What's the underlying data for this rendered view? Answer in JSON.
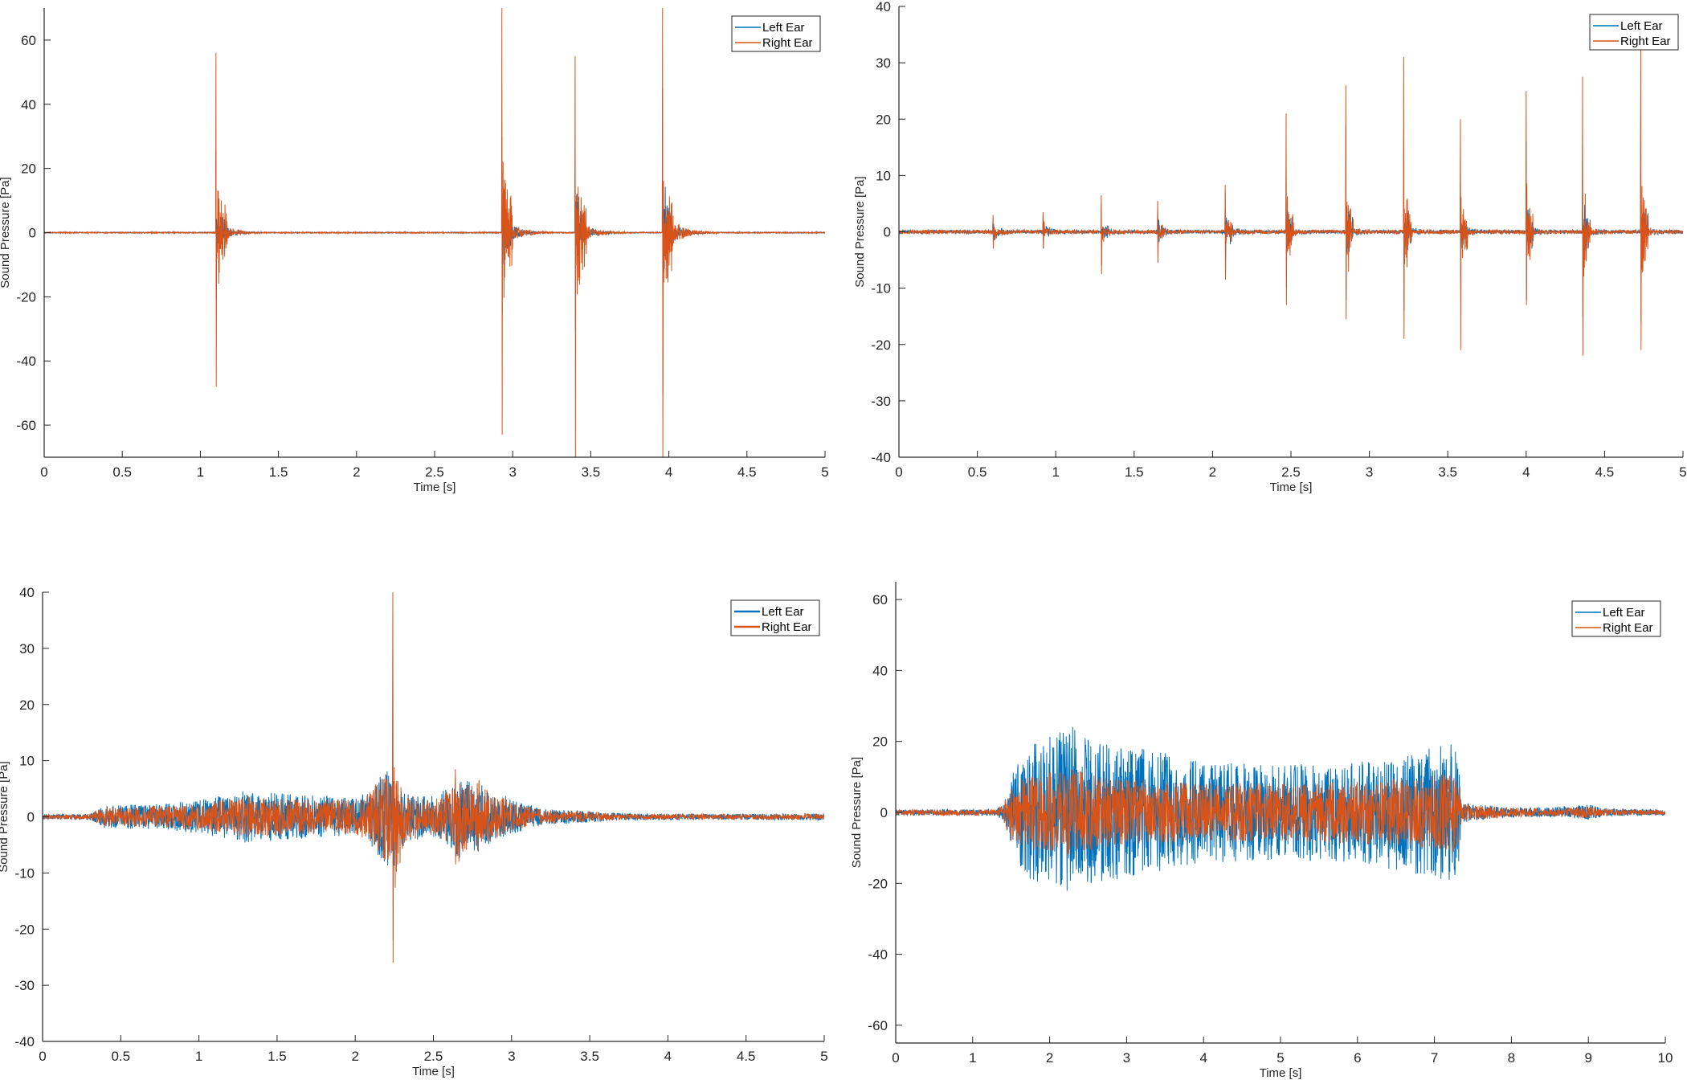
{
  "colors": {
    "left": "#0072BD",
    "right": "#D95319",
    "axis": "#262626"
  },
  "chart_data": [
    {
      "type": "line",
      "xlabel": "Time [s]",
      "ylabel": "Sound Pressure [Pa]",
      "xlim": [
        0,
        5
      ],
      "ylim": [
        -70,
        70
      ],
      "xticks": [
        0,
        0.5,
        1,
        1.5,
        2,
        2.5,
        3,
        3.5,
        4,
        4.5,
        5
      ],
      "yticks": [
        -60,
        -40,
        -20,
        0,
        20,
        40,
        60
      ],
      "legend": {
        "position": "top-right",
        "entries": [
          "Left Ear",
          "Right Ear"
        ]
      },
      "series": [
        {
          "name": "Left Ear",
          "noise": 0.15,
          "events": [
            {
              "t": 1.1,
              "pos": 26,
              "neg": -20,
              "decay": 0.05,
              "ring": 4
            },
            {
              "t": 2.93,
              "pos": 30,
              "neg": -25,
              "decay": 0.05,
              "ring": 6
            },
            {
              "t": 3.4,
              "pos": 28,
              "neg": -30,
              "decay": 0.05,
              "ring": 6
            },
            {
              "t": 3.96,
              "pos": 45,
              "neg": -50,
              "decay": 0.05,
              "ring": 8
            }
          ]
        },
        {
          "name": "Right Ear",
          "noise": 0.2,
          "events": [
            {
              "t": 1.1,
              "pos": 56,
              "neg": -48,
              "decay": 0.06,
              "ring": 4
            },
            {
              "t": 2.93,
              "pos": 70,
              "neg": -63,
              "decay": 0.06,
              "ring": 6
            },
            {
              "t": 3.4,
              "pos": 55,
              "neg": -70,
              "decay": 0.06,
              "ring": 6
            },
            {
              "t": 3.96,
              "pos": 70,
              "neg": -70,
              "decay": 0.06,
              "ring": 8
            }
          ]
        }
      ]
    },
    {
      "type": "line",
      "xlabel": "Time [s]",
      "ylabel": "Sound Pressure [Pa]",
      "xlim": [
        0,
        5
      ],
      "ylim": [
        -40,
        40
      ],
      "xticks": [
        0,
        0.5,
        1,
        1.5,
        2,
        2.5,
        3,
        3.5,
        4,
        4.5,
        5
      ],
      "yticks": [
        -40,
        -30,
        -20,
        -10,
        0,
        10,
        20,
        30,
        40
      ],
      "legend": {
        "position": "top-right",
        "entries": [
          "Left Ear",
          "Right Ear"
        ]
      },
      "series": [
        {
          "name": "Left Ear",
          "noise": 0.3,
          "events": [
            {
              "t": 0.6,
              "pos": 2.5,
              "neg": -2.5,
              "decay": 0.04,
              "ring": 1
            },
            {
              "t": 0.92,
              "pos": 3,
              "neg": -3,
              "decay": 0.04,
              "ring": 1
            },
            {
              "t": 1.29,
              "pos": 5,
              "neg": -6,
              "decay": 0.04,
              "ring": 1
            },
            {
              "t": 1.65,
              "pos": 4.5,
              "neg": -4.5,
              "decay": 0.04,
              "ring": 1
            },
            {
              "t": 2.08,
              "pos": 7,
              "neg": -8,
              "decay": 0.04,
              "ring": 1.5
            },
            {
              "t": 2.47,
              "pos": 12,
              "neg": -10,
              "decay": 0.04,
              "ring": 1.5
            },
            {
              "t": 2.85,
              "pos": 19,
              "neg": -12,
              "decay": 0.04,
              "ring": 1.5
            },
            {
              "t": 3.22,
              "pos": 17,
              "neg": -14,
              "decay": 0.04,
              "ring": 1.5
            },
            {
              "t": 3.58,
              "pos": 13,
              "neg": -9,
              "decay": 0.04,
              "ring": 1.5
            },
            {
              "t": 4.0,
              "pos": 16,
              "neg": -12,
              "decay": 0.04,
              "ring": 1.5
            },
            {
              "t": 4.36,
              "pos": 18,
              "neg": -15,
              "decay": 0.04,
              "ring": 1.5
            },
            {
              "t": 4.73,
              "pos": 23,
              "neg": -16,
              "decay": 0.04,
              "ring": 1.5
            }
          ]
        },
        {
          "name": "Right Ear",
          "noise": 0.35,
          "events": [
            {
              "t": 0.6,
              "pos": 3,
              "neg": -3,
              "decay": 0.04,
              "ring": 1
            },
            {
              "t": 0.92,
              "pos": 3.5,
              "neg": -3,
              "decay": 0.04,
              "ring": 1
            },
            {
              "t": 1.29,
              "pos": 6.5,
              "neg": -7.5,
              "decay": 0.04,
              "ring": 1
            },
            {
              "t": 1.65,
              "pos": 5.5,
              "neg": -5.5,
              "decay": 0.04,
              "ring": 1
            },
            {
              "t": 2.08,
              "pos": 8.3,
              "neg": -8.5,
              "decay": 0.04,
              "ring": 1.5
            },
            {
              "t": 2.47,
              "pos": 21,
              "neg": -13,
              "decay": 0.04,
              "ring": 1.5
            },
            {
              "t": 2.85,
              "pos": 26,
              "neg": -15.5,
              "decay": 0.04,
              "ring": 1.5
            },
            {
              "t": 3.22,
              "pos": 31,
              "neg": -19,
              "decay": 0.04,
              "ring": 1.5
            },
            {
              "t": 3.58,
              "pos": 20,
              "neg": -21,
              "decay": 0.04,
              "ring": 1.5
            },
            {
              "t": 4.0,
              "pos": 25,
              "neg": -13,
              "decay": 0.04,
              "ring": 1.5
            },
            {
              "t": 4.36,
              "pos": 27.5,
              "neg": -22,
              "decay": 0.04,
              "ring": 1.5
            },
            {
              "t": 4.73,
              "pos": 32.5,
              "neg": -21,
              "decay": 0.04,
              "ring": 1.5
            }
          ]
        }
      ]
    },
    {
      "type": "line",
      "xlabel": "Time [s]",
      "ylabel": "Sound Pressure [Pa]",
      "xlim": [
        0,
        5
      ],
      "ylim": [
        -40,
        40
      ],
      "xticks": [
        0,
        0.5,
        1,
        1.5,
        2,
        2.5,
        3,
        3.5,
        4,
        4.5,
        5
      ],
      "yticks": [
        -40,
        -30,
        -20,
        -10,
        0,
        10,
        20,
        30,
        40
      ],
      "legend": {
        "position": "top-right",
        "entries": [
          "Left Ear",
          "Right Ear"
        ]
      },
      "series": [
        {
          "name": "Left Ear",
          "noise": 0.2,
          "envelope": [
            [
              0,
              0.2
            ],
            [
              0.3,
              0.3
            ],
            [
              0.4,
              1.8
            ],
            [
              0.8,
              2.2
            ],
            [
              1.0,
              2.8
            ],
            [
              1.3,
              4.5
            ],
            [
              1.6,
              3.8
            ],
            [
              2.0,
              3.2
            ],
            [
              2.1,
              5
            ],
            [
              2.2,
              9
            ],
            [
              2.3,
              4
            ],
            [
              2.5,
              3.5
            ],
            [
              2.6,
              5
            ],
            [
              2.7,
              7
            ],
            [
              2.9,
              4
            ],
            [
              3.0,
              3
            ],
            [
              3.2,
              1.2
            ],
            [
              3.5,
              0.8
            ],
            [
              3.7,
              0.4
            ],
            [
              4.2,
              0.3
            ],
            [
              5.0,
              0.4
            ]
          ],
          "events": [
            {
              "t": 2.24,
              "pos": 36,
              "neg": -22,
              "decay": 0.04,
              "ring": 6
            },
            {
              "t": 2.64,
              "pos": 7,
              "neg": -7,
              "decay": 0.05,
              "ring": 3
            },
            {
              "t": 2.78,
              "pos": 5,
              "neg": -5,
              "decay": 0.05,
              "ring": 2
            }
          ]
        },
        {
          "name": "Right Ear",
          "noise": 0.2,
          "envelope": [
            [
              0,
              0.2
            ],
            [
              0.3,
              0.3
            ],
            [
              0.4,
              1.5
            ],
            [
              0.8,
              1.8
            ],
            [
              1.0,
              2.3
            ],
            [
              1.3,
              3.5
            ],
            [
              1.6,
              3.0
            ],
            [
              2.0,
              2.8
            ],
            [
              2.1,
              4.5
            ],
            [
              2.2,
              8
            ],
            [
              2.3,
              3.8
            ],
            [
              2.5,
              3.0
            ],
            [
              2.6,
              4.5
            ],
            [
              2.7,
              6
            ],
            [
              2.9,
              3.5
            ],
            [
              3.0,
              2.5
            ],
            [
              3.2,
              1
            ],
            [
              3.5,
              0.7
            ],
            [
              3.7,
              0.3
            ],
            [
              4.2,
              0.3
            ],
            [
              5.0,
              0.3
            ]
          ],
          "events": [
            {
              "t": 2.24,
              "pos": 40,
              "neg": -26,
              "decay": 0.04,
              "ring": 6
            },
            {
              "t": 2.64,
              "pos": 8.5,
              "neg": -8.5,
              "decay": 0.05,
              "ring": 3
            },
            {
              "t": 2.78,
              "pos": 6,
              "neg": -6,
              "decay": 0.05,
              "ring": 2
            }
          ]
        }
      ]
    },
    {
      "type": "line",
      "xlabel": "Time [s]",
      "ylabel": "Sound Pressure [Pa]",
      "xlim": [
        0,
        10
      ],
      "ylim": [
        -65,
        65
      ],
      "xticks": [
        0,
        1,
        2,
        3,
        4,
        5,
        6,
        7,
        8,
        9,
        10
      ],
      "yticks": [
        -60,
        -40,
        -20,
        0,
        20,
        40,
        60
      ],
      "legend": {
        "position": "top-right",
        "entries": [
          "Left Ear",
          "Right Ear"
        ]
      },
      "series": [
        {
          "name": "Left Ear",
          "noise": 0.3,
          "envelope": [
            [
              0,
              0.5
            ],
            [
              1.3,
              0.6
            ],
            [
              1.4,
              2
            ],
            [
              1.5,
              10
            ],
            [
              1.7,
              18
            ],
            [
              2.0,
              21
            ],
            [
              2.3,
              24
            ],
            [
              2.6,
              20
            ],
            [
              3.0,
              18
            ],
            [
              3.5,
              17
            ],
            [
              4.0,
              14
            ],
            [
              5.0,
              13
            ],
            [
              6.0,
              14
            ],
            [
              7.0,
              18
            ],
            [
              7.3,
              20
            ],
            [
              7.35,
              3
            ],
            [
              7.5,
              2
            ],
            [
              8.0,
              1.2
            ],
            [
              8.5,
              1.0
            ],
            [
              9.0,
              2
            ],
            [
              9.2,
              0.8
            ],
            [
              10.0,
              0.5
            ]
          ],
          "events": []
        },
        {
          "name": "Right Ear",
          "noise": 0.3,
          "envelope": [
            [
              0,
              0.5
            ],
            [
              1.3,
              0.6
            ],
            [
              1.4,
              2
            ],
            [
              1.5,
              8
            ],
            [
              1.7,
              10
            ],
            [
              2.0,
              11
            ],
            [
              2.3,
              12
            ],
            [
              2.6,
              10
            ],
            [
              3.0,
              9
            ],
            [
              3.5,
              8.5
            ],
            [
              4.0,
              8
            ],
            [
              5.0,
              8
            ],
            [
              6.0,
              8.5
            ],
            [
              7.0,
              10
            ],
            [
              7.3,
              11
            ],
            [
              7.35,
              2.5
            ],
            [
              7.5,
              1.8
            ],
            [
              8.0,
              1.0
            ],
            [
              8.5,
              0.8
            ],
            [
              9.0,
              1.5
            ],
            [
              9.2,
              0.6
            ],
            [
              10.0,
              0.4
            ]
          ],
          "events": []
        }
      ]
    }
  ]
}
